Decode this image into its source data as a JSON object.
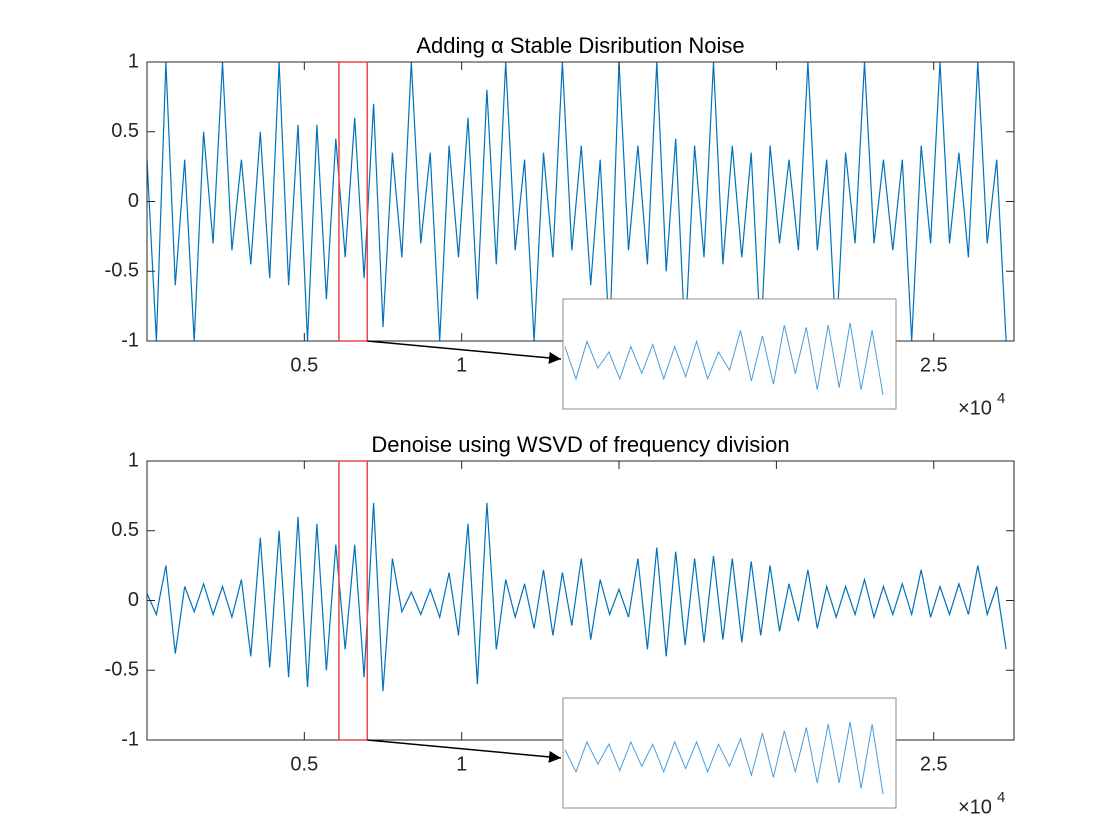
{
  "chart_data": [
    {
      "type": "line",
      "title": "Adding α Stable Disribution Noise",
      "color": "#0072BD",
      "x": [
        0,
        300,
        600,
        900,
        1200,
        1500,
        1800,
        2100,
        2400,
        2700,
        3000,
        3300,
        3600,
        3900,
        4200,
        4500,
        4800,
        5100,
        5400,
        5700,
        6000,
        6300,
        6600,
        6900,
        7200,
        7500,
        7800,
        8100,
        8400,
        8700,
        9000,
        9300,
        9600,
        9900,
        10200,
        10500,
        10800,
        11100,
        11400,
        11700,
        12000,
        12300,
        12600,
        12900,
        13200,
        13500,
        13800,
        14100,
        14400,
        14700,
        15000,
        15300,
        15600,
        15900,
        16200,
        16500,
        16800,
        17100,
        17400,
        17700,
        18000,
        18300,
        18600,
        18900,
        19200,
        19500,
        19800,
        20100,
        20400,
        20700,
        21000,
        21300,
        21600,
        21900,
        22200,
        22500,
        22800,
        23100,
        23400,
        23700,
        24000,
        24300,
        24600,
        24900,
        25200,
        25500,
        25800,
        26100,
        26400,
        26700,
        27000,
        27300
      ],
      "values": [
        0.3,
        -1,
        1,
        -0.6,
        0.3,
        -1,
        0.5,
        -0.3,
        1,
        -0.35,
        0.3,
        -0.45,
        0.5,
        -0.55,
        1,
        -0.6,
        0.55,
        -1,
        0.55,
        -0.7,
        0.45,
        -0.4,
        0.6,
        -0.55,
        0.7,
        -0.9,
        0.35,
        -0.4,
        1,
        -0.3,
        0.35,
        -1,
        0.4,
        -0.4,
        0.6,
        -0.7,
        0.8,
        -0.45,
        1,
        -0.35,
        0.3,
        -1,
        0.35,
        -0.4,
        1,
        -0.35,
        0.4,
        -0.6,
        0.3,
        -1,
        1,
        -0.35,
        0.4,
        -0.45,
        1,
        -0.5,
        0.45,
        -1,
        0.4,
        -0.4,
        1,
        -0.45,
        0.4,
        -0.4,
        0.35,
        -1,
        0.4,
        -0.3,
        0.3,
        -0.35,
        1,
        -0.35,
        0.3,
        -1,
        0.35,
        -0.3,
        1,
        -0.3,
        0.3,
        -0.35,
        0.3,
        -1,
        0.4,
        -0.3,
        1,
        -0.3,
        0.35,
        -0.4,
        1,
        -0.3,
        0.3,
        -1
      ],
      "xlim": [
        1,
        27550
      ],
      "xticks": [
        {
          "value": 5000,
          "label": "0.5"
        },
        {
          "value": 10000,
          "label": "1"
        },
        {
          "value": 15000,
          "label": "1.5"
        },
        {
          "value": 20000,
          "label": "2"
        },
        {
          "value": 25000,
          "label": "2.5"
        }
      ],
      "x_multiplier": {
        "base": "×10",
        "exponent": "4"
      },
      "ylim": [
        -1,
        1
      ],
      "yticks": [
        -1,
        -0.5,
        0,
        0.5,
        1
      ],
      "zoom_region": [
        6100,
        7000
      ],
      "zoom_color": "#e8474b",
      "inset": {
        "color": "#4a9fdc",
        "x": [
          6100,
          6130,
          6160,
          6190,
          6220,
          6250,
          6280,
          6310,
          6340,
          6370,
          6400,
          6430,
          6460,
          6490,
          6520,
          6550,
          6580,
          6610,
          6640,
          6670,
          6700,
          6730,
          6760,
          6790,
          6820,
          6850,
          6880,
          6910,
          6940,
          6970
        ],
        "values": [
          0.1,
          -0.2,
          0.15,
          -0.1,
          0.05,
          -0.2,
          0.1,
          -0.15,
          0.12,
          -0.2,
          0.1,
          -0.18,
          0.15,
          -0.2,
          0.05,
          -0.12,
          0.25,
          -0.22,
          0.2,
          -0.25,
          0.3,
          -0.15,
          0.28,
          -0.3,
          0.3,
          -0.28,
          0.32,
          -0.3,
          0.25,
          -0.35
        ]
      }
    },
    {
      "type": "line",
      "title": "Denoise using WSVD of frequency division",
      "color": "#0072BD",
      "x": [
        0,
        300,
        600,
        900,
        1200,
        1500,
        1800,
        2100,
        2400,
        2700,
        3000,
        3300,
        3600,
        3900,
        4200,
        4500,
        4800,
        5100,
        5400,
        5700,
        6000,
        6300,
        6600,
        6900,
        7200,
        7500,
        7800,
        8100,
        8400,
        8700,
        9000,
        9300,
        9600,
        9900,
        10200,
        10500,
        10800,
        11100,
        11400,
        11700,
        12000,
        12300,
        12600,
        12900,
        13200,
        13500,
        13800,
        14100,
        14400,
        14700,
        15000,
        15300,
        15600,
        15900,
        16200,
        16500,
        16800,
        17100,
        17400,
        17700,
        18000,
        18300,
        18600,
        18900,
        19200,
        19500,
        19800,
        20100,
        20400,
        20700,
        21000,
        21300,
        21600,
        21900,
        22200,
        22500,
        22800,
        23100,
        23400,
        23700,
        24000,
        24300,
        24600,
        24900,
        25200,
        25500,
        25800,
        26100,
        26400,
        26700,
        27000,
        27300
      ],
      "values": [
        0.05,
        -0.1,
        0.25,
        -0.38,
        0.1,
        -0.08,
        0.12,
        -0.1,
        0.1,
        -0.12,
        0.15,
        -0.4,
        0.45,
        -0.48,
        0.5,
        -0.55,
        0.6,
        -0.62,
        0.55,
        -0.5,
        0.4,
        -0.35,
        0.4,
        -0.55,
        0.7,
        -0.65,
        0.3,
        -0.08,
        0.06,
        -0.1,
        0.08,
        -0.12,
        0.2,
        -0.25,
        0.55,
        -0.6,
        0.7,
        -0.35,
        0.15,
        -0.12,
        0.12,
        -0.2,
        0.22,
        -0.25,
        0.2,
        -0.18,
        0.3,
        -0.28,
        0.15,
        -0.1,
        0.08,
        -0.12,
        0.3,
        -0.35,
        0.38,
        -0.4,
        0.35,
        -0.32,
        0.3,
        -0.3,
        0.32,
        -0.28,
        0.3,
        -0.3,
        0.28,
        -0.25,
        0.25,
        -0.22,
        0.12,
        -0.15,
        0.22,
        -0.2,
        0.1,
        -0.12,
        0.1,
        -0.1,
        0.15,
        -0.12,
        0.1,
        -0.1,
        0.12,
        -0.1,
        0.22,
        -0.12,
        0.1,
        -0.1,
        0.12,
        -0.1,
        0.25,
        -0.1,
        0.1,
        -0.35
      ],
      "xlim": [
        1,
        27550
      ],
      "xticks": [
        {
          "value": 5000,
          "label": "0.5"
        },
        {
          "value": 10000,
          "label": "1"
        },
        {
          "value": 15000,
          "label": "1.5"
        },
        {
          "value": 20000,
          "label": "2"
        },
        {
          "value": 25000,
          "label": "2.5"
        }
      ],
      "x_multiplier": {
        "base": "×10",
        "exponent": "4"
      },
      "ylim": [
        -1,
        1
      ],
      "yticks": [
        -1,
        -0.5,
        0,
        0.5,
        1
      ],
      "zoom_region": [
        6100,
        7000
      ],
      "zoom_color": "#e8474b",
      "inset": {
        "color": "#4a9fdc",
        "x": [
          6100,
          6130,
          6160,
          6190,
          6220,
          6250,
          6280,
          6310,
          6340,
          6370,
          6400,
          6430,
          6460,
          6490,
          6520,
          6550,
          6580,
          6610,
          6640,
          6670,
          6700,
          6730,
          6760,
          6790,
          6820,
          6850,
          6880,
          6910,
          6940,
          6970
        ],
        "values": [
          0.05,
          -0.15,
          0.12,
          -0.08,
          0.1,
          -0.14,
          0.12,
          -0.1,
          0.1,
          -0.15,
          0.12,
          -0.12,
          0.12,
          -0.15,
          0.1,
          -0.1,
          0.15,
          -0.18,
          0.2,
          -0.2,
          0.22,
          -0.15,
          0.25,
          -0.25,
          0.28,
          -0.25,
          0.3,
          -0.3,
          0.28,
          -0.35
        ]
      }
    }
  ]
}
